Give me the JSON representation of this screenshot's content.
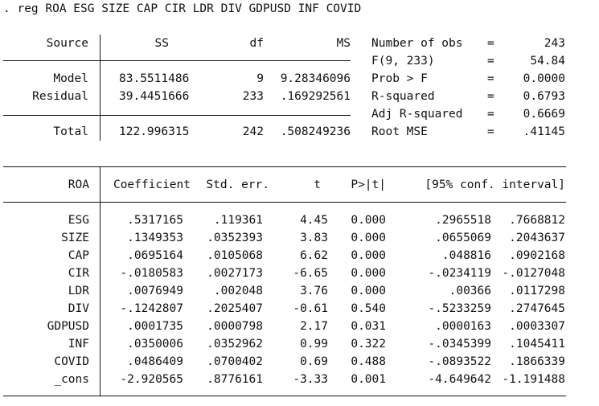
{
  "command": ". reg ROA ESG SIZE CAP CIR LDR DIV GDPUSD INF COVID",
  "anova": {
    "headers": {
      "source": "Source",
      "ss": "SS",
      "df": "df",
      "ms": "MS"
    },
    "rows": [
      {
        "source": "Model",
        "ss": "83.5511486",
        "df": "9",
        "ms": "9.28346096"
      },
      {
        "source": "Residual",
        "ss": "39.4451666",
        "df": "233",
        "ms": ".169292561"
      }
    ],
    "total": {
      "source": "Total",
      "ss": "122.996315",
      "df": "242",
      "ms": ".508249236"
    }
  },
  "fit_stats": [
    {
      "label": "Number of obs",
      "eq": "=",
      "value": "243"
    },
    {
      "label": "F(9, 233)",
      "eq": "=",
      "value": "54.84"
    },
    {
      "label": "Prob > F",
      "eq": "=",
      "value": "0.0000"
    },
    {
      "label": "R-squared",
      "eq": "=",
      "value": "0.6793"
    },
    {
      "label": "Adj R-squared",
      "eq": "=",
      "value": "0.6669"
    },
    {
      "label": "Root MSE",
      "eq": "=",
      "value": ".41145"
    }
  ],
  "coef_table": {
    "headers": {
      "var": "ROA",
      "coef": "Coefficient",
      "se": "Std. err.",
      "t": "t",
      "p": "P>|t|",
      "ci": "[95% conf. interval]"
    },
    "rows": [
      {
        "var": "ESG",
        "coef": ".5317165",
        "se": ".119361",
        "t": "4.45",
        "p": "0.000",
        "lo": ".2965518",
        "hi": ".7668812"
      },
      {
        "var": "SIZE",
        "coef": ".1349353",
        "se": ".0352393",
        "t": "3.83",
        "p": "0.000",
        "lo": ".0655069",
        "hi": ".2043637"
      },
      {
        "var": "CAP",
        "coef": ".0695164",
        "se": ".0105068",
        "t": "6.62",
        "p": "0.000",
        "lo": ".048816",
        "hi": ".0902168"
      },
      {
        "var": "CIR",
        "coef": "-.0180583",
        "se": ".0027173",
        "t": "-6.65",
        "p": "0.000",
        "lo": "-.0234119",
        "hi": "-.0127048"
      },
      {
        "var": "LDR",
        "coef": ".0076949",
        "se": ".002048",
        "t": "3.76",
        "p": "0.000",
        "lo": ".00366",
        "hi": ".0117298"
      },
      {
        "var": "DIV",
        "coef": "-.1242807",
        "se": ".2025407",
        "t": "-0.61",
        "p": "0.540",
        "lo": "-.5233259",
        "hi": ".2747645"
      },
      {
        "var": "GDPUSD",
        "coef": ".0001735",
        "se": ".0000798",
        "t": "2.17",
        "p": "0.031",
        "lo": ".0000163",
        "hi": ".0003307"
      },
      {
        "var": "INF",
        "coef": ".0350006",
        "se": ".0352962",
        "t": "0.99",
        "p": "0.322",
        "lo": "-.0345399",
        "hi": ".1045411"
      },
      {
        "var": "COVID",
        "coef": ".0486409",
        "se": ".0700402",
        "t": "0.69",
        "p": "0.488",
        "lo": "-.0893522",
        "hi": ".1866339"
      },
      {
        "var": "_cons",
        "coef": "-2.920565",
        "se": ".8776161",
        "t": "-3.33",
        "p": "0.001",
        "lo": "-4.649642",
        "hi": "-1.191488"
      }
    ]
  }
}
